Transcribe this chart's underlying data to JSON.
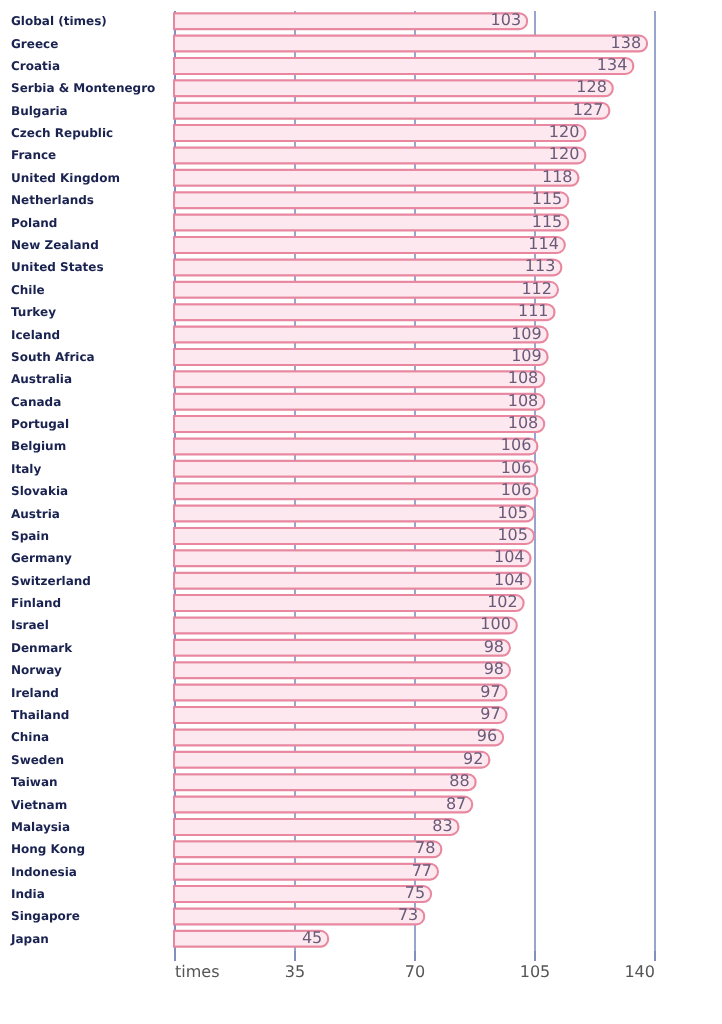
{
  "chart_data": {
    "type": "bar",
    "orientation": "horizontal",
    "categories": [
      "Global (times)",
      "Greece",
      "Croatia",
      "Serbia & Montenegro",
      "Bulgaria",
      "Czech Republic",
      "France",
      "United Kingdom",
      "Netherlands",
      "Poland",
      "New Zealand",
      "United States",
      "Chile",
      "Turkey",
      "Iceland",
      "South Africa",
      "Australia",
      "Canada",
      "Portugal",
      "Belgium",
      "Italy",
      "Slovakia",
      "Austria",
      "Spain",
      "Germany",
      "Switzerland",
      "Finland",
      "Israel",
      "Denmark",
      "Norway",
      "Ireland",
      "Thailand",
      "China",
      "Sweden",
      "Taiwan",
      "Vietnam",
      "Malaysia",
      "Hong Kong",
      "Indonesia",
      "India",
      "Singapore",
      "Japan"
    ],
    "values": [
      103,
      138,
      134,
      128,
      127,
      120,
      120,
      118,
      115,
      115,
      114,
      113,
      112,
      111,
      109,
      109,
      108,
      108,
      108,
      106,
      106,
      106,
      105,
      105,
      104,
      104,
      102,
      100,
      98,
      98,
      97,
      97,
      96,
      92,
      88,
      87,
      83,
      78,
      77,
      75,
      73,
      45
    ],
    "color": "#fce8ee",
    "data_labels": true,
    "xlim": [
      0,
      140
    ],
    "xticks": [
      {
        "value": 0,
        "label": "times"
      },
      35,
      70,
      105,
      140
    ],
    "grid": "x"
  }
}
